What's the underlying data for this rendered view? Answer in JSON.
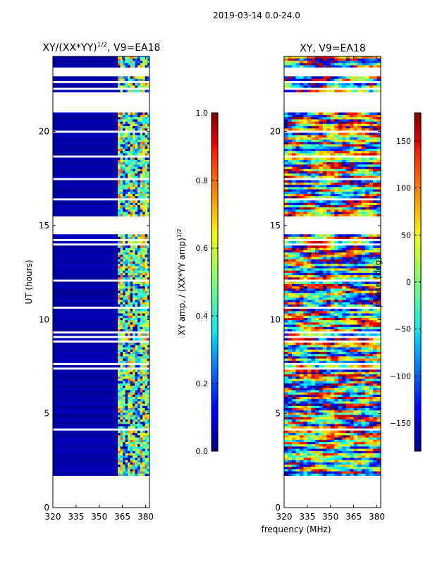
{
  "suptitle": "2019-03-14 0.0-24.0",
  "xlabel_common": "frequency (MHz)",
  "chart_data": [
    {
      "type": "heatmap",
      "title": "XY/(XX*YY)^{1/2}, V9=EA18",
      "title_main": "XY/(XX*YY)",
      "title_sup": "1/2",
      "title_tail": ", V9=EA18",
      "xlabel": "frequency (MHz)",
      "ylabel": "UT (hours)",
      "xlim": [
        320,
        382.5
      ],
      "ylim": [
        0,
        24
      ],
      "xticks": [
        320,
        335,
        350,
        365,
        380
      ],
      "yticks": [
        0,
        5,
        10,
        15,
        20
      ],
      "data_y_range": [
        1.7,
        24
      ],
      "colorbar": {
        "label": "XY amp. / (XX*YY amp)^{1/2}",
        "label_main": "XY amp. / (XX*YY amp)",
        "label_sup": "1/2",
        "vmin": 0.0,
        "vmax": 1.0,
        "ticks": [
          "0.0",
          "0.2",
          "0.4",
          "0.6",
          "0.8",
          "1.0"
        ],
        "tick_values": [
          0.0,
          0.2,
          0.4,
          0.6,
          0.8,
          1.0
        ]
      },
      "features": {
        "low_band_mhz": [
          320,
          360
        ],
        "high_band_mhz": [
          360,
          382.5
        ],
        "high_band_value_range": [
          0.2,
          0.7
        ],
        "gap_hours": [
          [
            14.5,
            15.4
          ],
          [
            21.0,
            22.0
          ],
          [
            0.0,
            1.7
          ]
        ]
      }
    },
    {
      "type": "heatmap",
      "title": "XY, V9=EA18",
      "xlabel": "frequency (MHz)",
      "ylabel": "",
      "xlim": [
        320,
        382.5
      ],
      "ylim": [
        0,
        24
      ],
      "xticks": [
        320,
        335,
        350,
        365,
        380
      ],
      "yticks": [
        0,
        5,
        10,
        15,
        20
      ],
      "data_y_range": [
        1.7,
        24
      ],
      "colorbar": {
        "label": "phase (deg)",
        "vmin": -180,
        "vmax": 180,
        "ticks": [
          "−150",
          "−100",
          "−50",
          "0",
          "50",
          "100",
          "150"
        ],
        "tick_values": [
          -150,
          -100,
          -50,
          0,
          50,
          100,
          150
        ]
      }
    }
  ]
}
